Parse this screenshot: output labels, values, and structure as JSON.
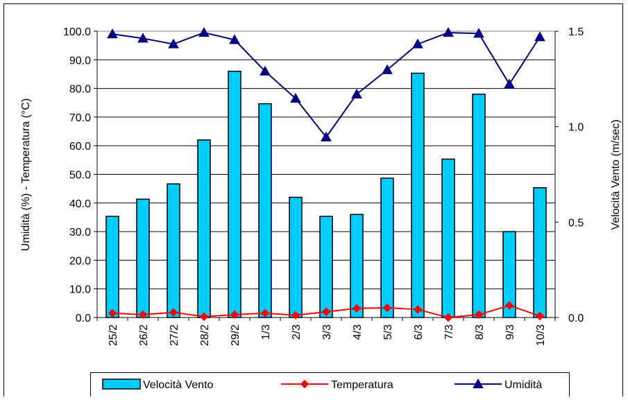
{
  "chart_data": {
    "type": "bar",
    "categories": [
      "25/2",
      "26/2",
      "27/2",
      "28/2",
      "29/2",
      "1/3",
      "2/3",
      "3/3",
      "4/3",
      "5/3",
      "6/3",
      "7/3",
      "8/3",
      "9/3",
      "10/3"
    ],
    "series": [
      {
        "name": "Velocità Vento",
        "type": "bar",
        "axis": "right",
        "color": "#00ccff",
        "values": [
          0.53,
          0.62,
          0.7,
          0.93,
          1.29,
          1.12,
          0.63,
          0.53,
          0.54,
          0.73,
          1.28,
          0.83,
          1.17,
          0.45,
          0.68
        ]
      },
      {
        "name": "Temperatura",
        "type": "line",
        "axis": "left",
        "marker": "diamond",
        "color": "#ff0000",
        "values": [
          1.5,
          1.0,
          1.8,
          0.3,
          1.0,
          1.5,
          0.8,
          2.0,
          3.2,
          3.4,
          2.8,
          0.0,
          1.0,
          4.2,
          0.5
        ]
      },
      {
        "name": "Umidità",
        "type": "line",
        "axis": "left",
        "marker": "triangle",
        "color": "#000080",
        "values": [
          99.0,
          97.5,
          95.5,
          99.5,
          97.0,
          86.0,
          76.5,
          63.0,
          78.0,
          86.5,
          95.5,
          99.5,
          99.2,
          81.5,
          98.0
        ]
      }
    ],
    "ylabel": "Umidità (%) - Temperatura (°C)",
    "y2label": "Velocità Vento (m/sec)",
    "ylim": [
      0,
      100
    ],
    "y2lim": [
      0,
      1.5
    ],
    "yticks": [
      "0.0",
      "10.0",
      "20.0",
      "30.0",
      "40.0",
      "50.0",
      "60.0",
      "70.0",
      "80.0",
      "90.0",
      "100.0"
    ],
    "y2ticks": [
      "0.0",
      "0.5",
      "1.0",
      "1.5"
    ],
    "grid": true,
    "legend_position": "bottom"
  }
}
